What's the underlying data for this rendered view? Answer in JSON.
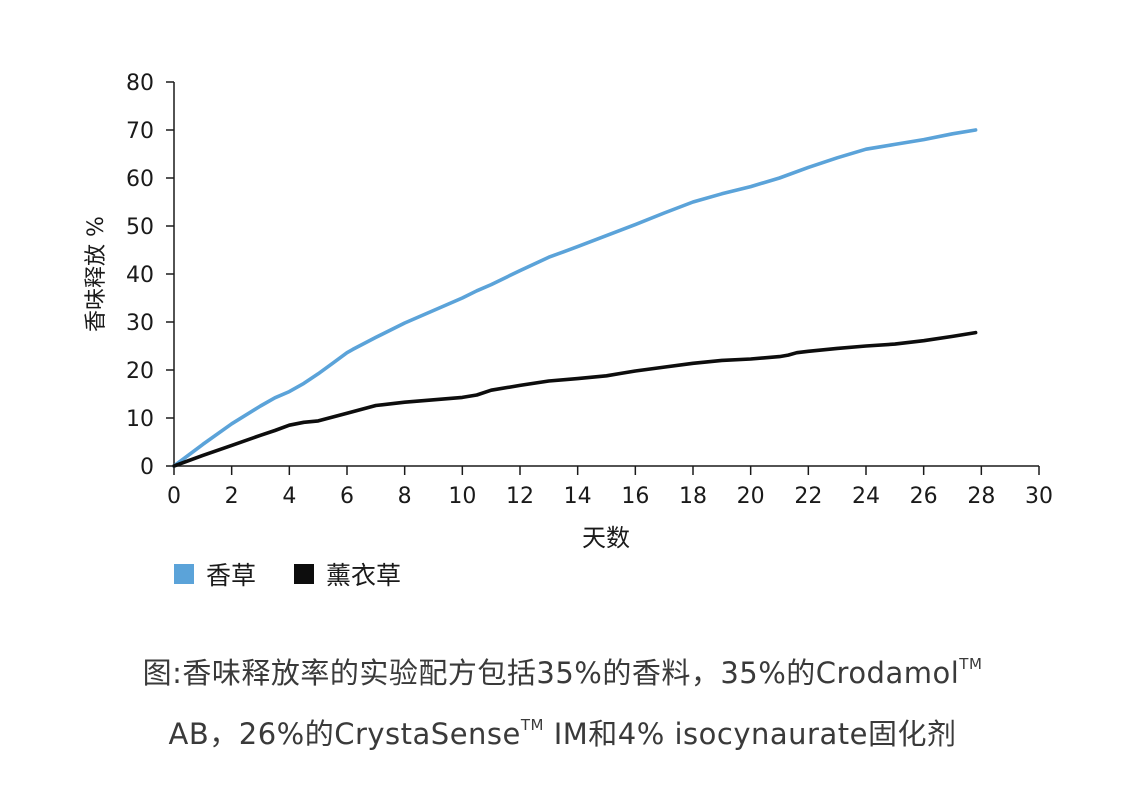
{
  "chart_data": {
    "type": "line",
    "title": "",
    "xlabel": "天数",
    "ylabel": "香味释放 %",
    "xlim": [
      0,
      30
    ],
    "ylim": [
      0,
      80
    ],
    "xticks": [
      0,
      2,
      4,
      6,
      8,
      10,
      12,
      14,
      16,
      18,
      20,
      22,
      24,
      26,
      28,
      30
    ],
    "yticks": [
      0,
      10,
      20,
      30,
      40,
      50,
      60,
      70,
      80
    ],
    "grid": false,
    "legend_position": "bottom-left",
    "series": [
      {
        "name": "香草",
        "color": "#5BA3D9",
        "x": [
          0,
          1,
          2,
          3,
          3.5,
          4,
          4.5,
          5,
          5.5,
          6,
          6.2,
          7,
          8,
          9,
          10,
          10.5,
          11,
          12,
          13,
          13.5,
          14,
          15,
          16,
          17,
          18,
          19,
          20,
          21,
          22,
          23,
          24,
          24.5,
          25,
          26,
          27,
          27.8
        ],
        "y": [
          0,
          4.5,
          8.8,
          12.5,
          14.2,
          15.5,
          17.2,
          19.2,
          21.4,
          23.6,
          24.3,
          26.8,
          29.8,
          32.4,
          35.0,
          36.5,
          37.8,
          40.7,
          43.5,
          44.6,
          45.7,
          48.0,
          50.3,
          52.7,
          55.0,
          56.7,
          58.2,
          60.0,
          62.2,
          64.2,
          66.0,
          66.5,
          67.0,
          68.0,
          69.2,
          70.0
        ]
      },
      {
        "name": "薰衣草",
        "color": "#0d0d0d",
        "x": [
          0,
          1,
          2,
          3,
          3.5,
          4,
          4.5,
          5,
          6,
          7,
          8,
          9,
          10,
          10.5,
          11,
          12,
          13,
          14,
          15,
          15.5,
          16,
          17,
          18,
          19,
          20,
          21,
          21.3,
          21.6,
          22,
          23,
          24,
          25,
          26,
          27,
          27.8
        ],
        "y": [
          0,
          2.2,
          4.3,
          6.4,
          7.4,
          8.5,
          9.1,
          9.4,
          11.0,
          12.6,
          13.3,
          13.8,
          14.3,
          14.8,
          15.8,
          16.8,
          17.7,
          18.2,
          18.8,
          19.3,
          19.8,
          20.6,
          21.4,
          22.0,
          22.3,
          22.8,
          23.1,
          23.6,
          23.9,
          24.5,
          25.0,
          25.4,
          26.1,
          27.0,
          27.8
        ]
      }
    ]
  },
  "legend": {
    "items": [
      {
        "label": "香草",
        "color": "#5BA3D9"
      },
      {
        "label": "薰衣草",
        "color": "#0d0d0d"
      }
    ]
  },
  "caption": {
    "line1_text": "图:香味释放率的实验配方包括35%的香料，35%的Crodamol",
    "line1_tm": "TM",
    "line2_a": "AB，26%的CrystaSense",
    "line2_tm": "TM",
    "line2_b": " IM和4% isocynaurate固化剂"
  }
}
